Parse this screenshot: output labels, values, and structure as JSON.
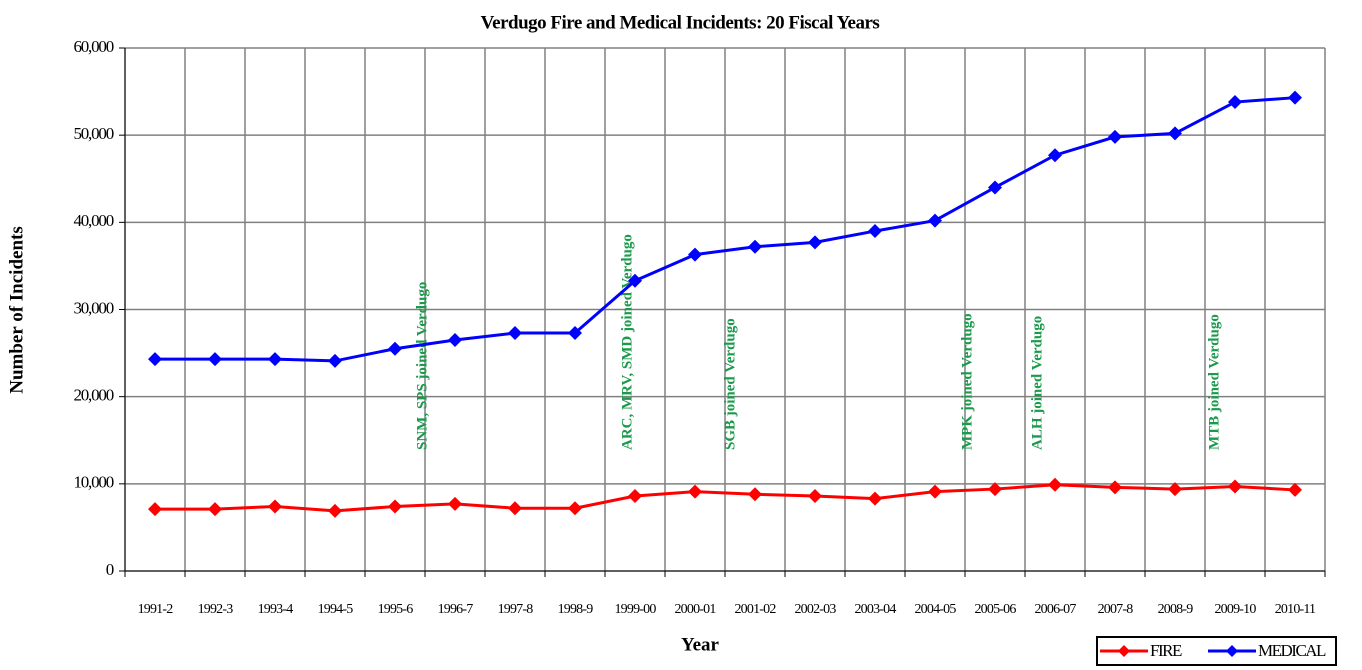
{
  "chart_data": {
    "type": "line",
    "title": "Verdugo Fire and Medical Incidents: 20 Fiscal Years",
    "x_label": "Year",
    "y_label": "Number of Incidents",
    "categories": [
      "1991-2",
      "1992-3",
      "1993-4",
      "1994-5",
      "1995-6",
      "1996-7",
      "1997-8",
      "1998-9",
      "1999-00",
      "2000-01",
      "2001-02",
      "2002-03",
      "2003-04",
      "2004-05",
      "2005-06",
      "2006-07",
      "2007-8",
      "2008-9",
      "2009-10",
      "2010-11"
    ],
    "series": [
      {
        "name": "FIRE",
        "color": "#ff0000",
        "values": [
          7100,
          7100,
          7400,
          6900,
          7400,
          7700,
          7200,
          7200,
          8600,
          9100,
          8800,
          8600,
          8300,
          9100,
          9400,
          9900,
          9600,
          9400,
          9700,
          9300
        ]
      },
      {
        "name": "MEDICAL",
        "color": "#0000ff",
        "values": [
          24300,
          24300,
          24300,
          24100,
          25500,
          26500,
          27300,
          27300,
          33300,
          36300,
          37200,
          37700,
          39000,
          40200,
          44000,
          47700,
          49800,
          50200,
          53800,
          54300
        ]
      }
    ],
    "ylim": [
      0,
      60000
    ],
    "yticks": [
      0,
      {
        "value": 10000,
        "label": "10,000"
      },
      {
        "value": 20000,
        "label": "20,000"
      },
      {
        "value": 30000,
        "label": "30,000"
      },
      {
        "value": 40000,
        "label": "40,000"
      },
      {
        "value": 50000,
        "label": "50,000"
      },
      {
        "value": 60000,
        "label": "60,000"
      }
    ],
    "grid": true,
    "legend_position": "bottom-right",
    "annotations": [
      "SNM, SPS joined Verdugo",
      "ARC, MRV, SMD joined Verdugo",
      "SGB joined Verdugo",
      "MPK joined Verdugo",
      "ALH joined Verdugo",
      "MTB joined Verdugo"
    ]
  }
}
